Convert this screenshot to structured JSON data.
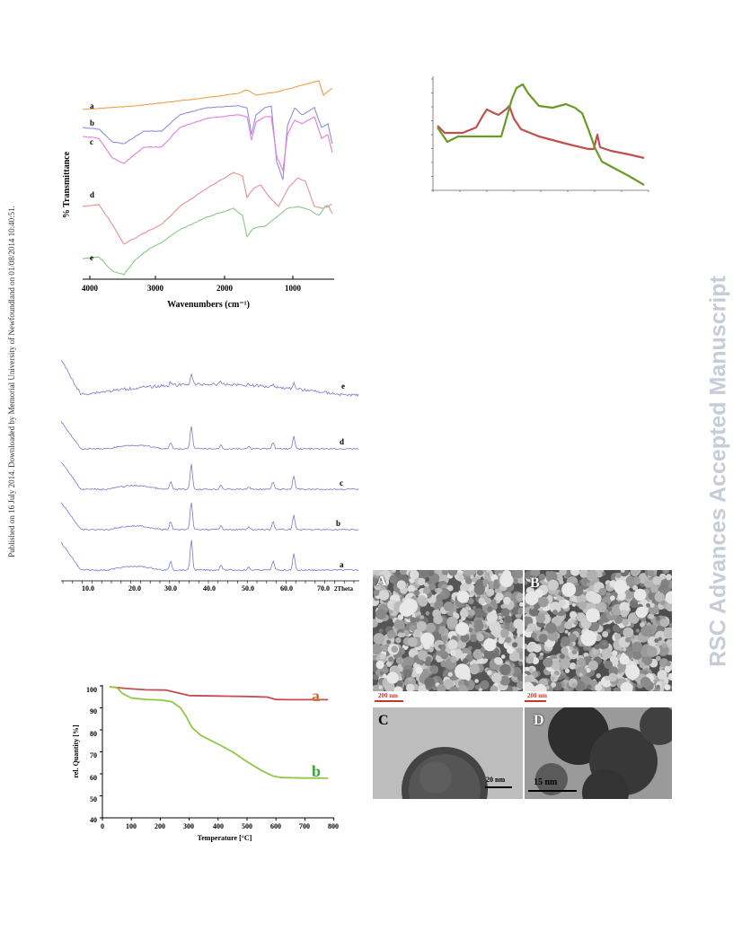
{
  "side_note": "Published on 16 July 2014. Downloaded by Memorial University of Newfoundland on 01/08/2014 10:40:51.",
  "watermark": "RSC Advances Accepted Manuscript",
  "ftir": {
    "ylabel": "% Transmittance",
    "xlabel": "Wavenumbers (cm⁻¹)",
    "ticks": [
      "4000",
      "3000",
      "2000",
      "1000"
    ],
    "series": [
      {
        "name": "a",
        "color": "#f0a04b"
      },
      {
        "name": "b",
        "color": "#8f8fe0"
      },
      {
        "name": "c",
        "color": "#e57be0"
      },
      {
        "name": "d",
        "color": "#e89090"
      },
      {
        "name": "e",
        "color": "#8fc48f"
      }
    ]
  },
  "top_right": {
    "series_colors": [
      "#c0504d",
      "#6a9a2a"
    ]
  },
  "xrd": {
    "ticks": [
      "10.0",
      "20.0",
      "30.0",
      "40.0",
      "50.0",
      "60.0",
      "70.0"
    ],
    "axis_unit": "2Theta",
    "series": [
      "a",
      "b",
      "c",
      "d",
      "e"
    ],
    "color": "#7a7acc"
  },
  "tga": {
    "ylabel": "rel. Quantity [%]",
    "xlabel": "Temperature [°C]",
    "xticks": [
      "0",
      "100",
      "200",
      "300",
      "400",
      "500",
      "600",
      "700",
      "800"
    ],
    "yticks": [
      "40",
      "50",
      "60",
      "70",
      "80",
      "90",
      "100"
    ],
    "series": [
      {
        "name": "a",
        "color": "#c0504d",
        "label_color": "#c8713b"
      },
      {
        "name": "b",
        "color": "#92c74a",
        "label_color": "#3aa63a"
      }
    ]
  },
  "micrographs": [
    {
      "label": "A",
      "scale": "200 nm"
    },
    {
      "label": "B",
      "scale": "200 nm"
    },
    {
      "label": "C",
      "scale": "20 nm"
    },
    {
      "label": "D",
      "scale": "15 nm"
    }
  ]
}
